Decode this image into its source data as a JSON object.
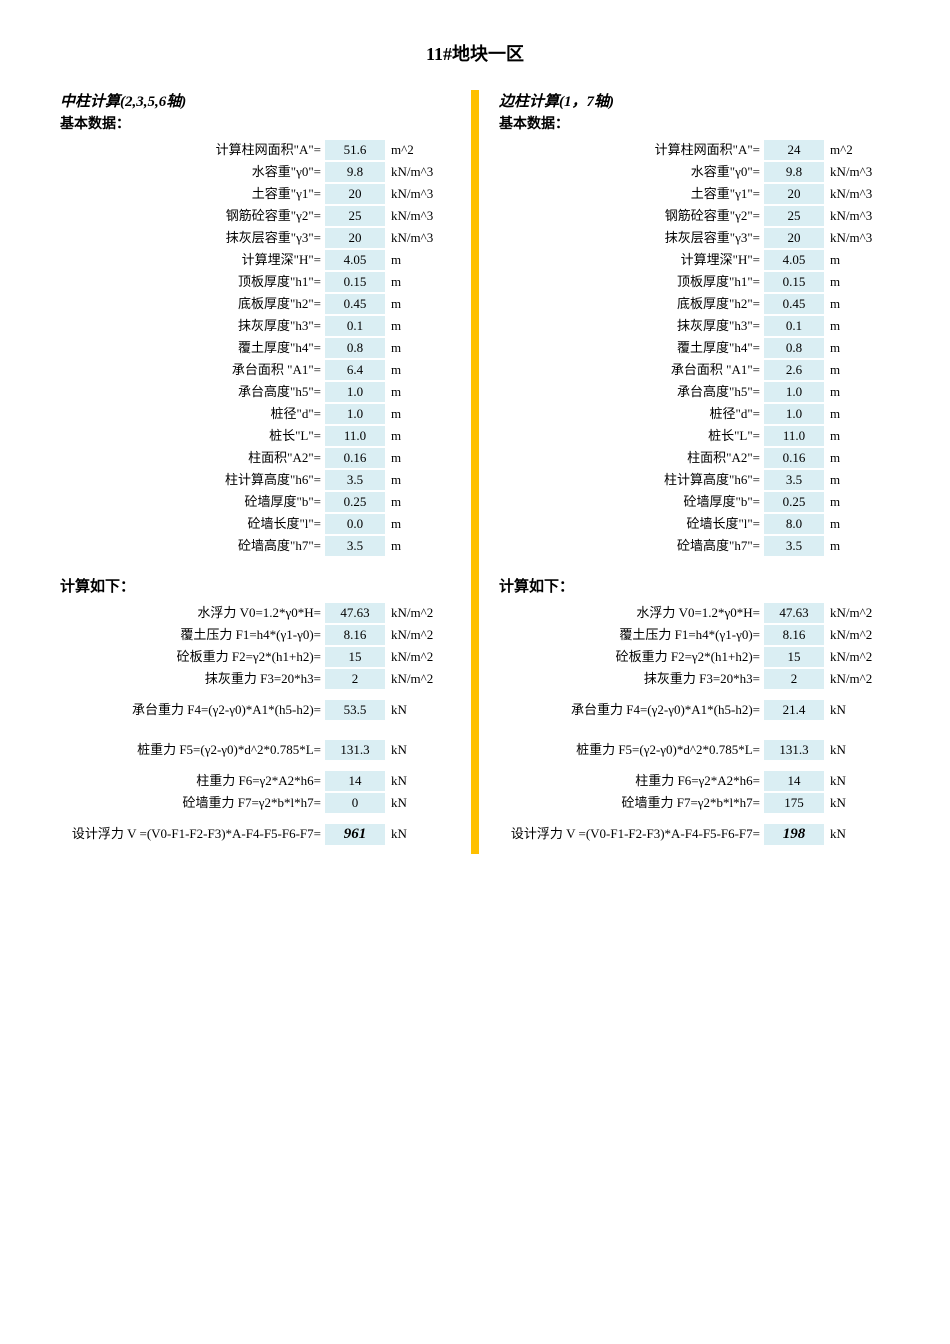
{
  "title": "11#地块一区",
  "columns": [
    {
      "header": "中柱计算(2,3,5,6轴)",
      "sub": "基本数据：",
      "basic": [
        {
          "label": "计算柱网面积\"A\"=",
          "val": "51.6",
          "unit": "m^2"
        },
        {
          "label": "水容重\"γ0\"=",
          "val": "9.8",
          "unit": "kN/m^3"
        },
        {
          "label": "土容重\"γ1\"=",
          "val": "20",
          "unit": "kN/m^3"
        },
        {
          "label": "钢筋砼容重\"γ2\"=",
          "val": "25",
          "unit": "kN/m^3"
        },
        {
          "label": "抹灰层容重\"γ3\"=",
          "val": "20",
          "unit": "kN/m^3"
        },
        {
          "label": "计算埋深\"H\"=",
          "val": "4.05",
          "unit": "m"
        },
        {
          "label": "顶板厚度\"h1\"=",
          "val": "0.15",
          "unit": "m"
        },
        {
          "label": "底板厚度\"h2\"=",
          "val": "0.45",
          "unit": "m"
        },
        {
          "label": "抹灰厚度\"h3\"=",
          "val": "0.1",
          "unit": "m"
        },
        {
          "label": "覆土厚度\"h4\"=",
          "val": "0.8",
          "unit": "m"
        },
        {
          "label": "承台面积 \"A1\"=",
          "val": "6.4",
          "unit": "m"
        },
        {
          "label": "承台高度\"h5\"=",
          "val": "1.0",
          "unit": "m"
        },
        {
          "label": "桩径\"d\"=",
          "val": "1.0",
          "unit": "m"
        },
        {
          "label": "桩长\"L\"=",
          "val": "11.0",
          "unit": "m"
        },
        {
          "label": "柱面积\"A2\"=",
          "val": "0.16",
          "unit": "m"
        },
        {
          "label": "柱计算高度\"h6\"=",
          "val": "3.5",
          "unit": "m"
        },
        {
          "label": "砼墙厚度\"b\"=",
          "val": "0.25",
          "unit": "m"
        },
        {
          "label": "砼墙长度\"l\"=",
          "val": "0.0",
          "unit": "m"
        },
        {
          "label": "砼墙高度\"h7\"=",
          "val": "3.5",
          "unit": "m"
        }
      ],
      "calcHeader": "计算如下：",
      "calc": [
        {
          "label": "水浮力 V0=1.2*γ0*H=",
          "val": "47.63",
          "unit": "kN/m^2",
          "tall": false
        },
        {
          "label": "覆土压力 F1=h4*(γ1-γ0)=",
          "val": "8.16",
          "unit": "kN/m^2",
          "tall": false
        },
        {
          "label": "砼板重力 F2=γ2*(h1+h2)=",
          "val": "15",
          "unit": "kN/m^2",
          "tall": false
        },
        {
          "label": "抹灰重力 F3=20*h3=",
          "val": "2",
          "unit": "kN/m^2",
          "tall": false
        },
        {
          "label": "承台重力 F4=(γ2-γ0)*A1*(h5-h2)=",
          "val": "53.5",
          "unit": "kN",
          "tall": true
        },
        {
          "label": "桩重力 F5=(γ2-γ0)*d^2*0.785*L=",
          "val": "131.3",
          "unit": "kN",
          "tall": true
        },
        {
          "label": "柱重力 F6=γ2*A2*h6=",
          "val": "14",
          "unit": "kN",
          "tall": false
        },
        {
          "label": "砼墙重力 F7=γ2*b*l*h7=",
          "val": "0",
          "unit": "kN",
          "tall": false
        },
        {
          "label": "设计浮力 V =(V0-F1-F2-F3)*A-F4-F5-F6-F7=",
          "val": "961",
          "unit": "kN",
          "tall": true,
          "final": true
        }
      ]
    },
    {
      "header": "边柱计算(1，7轴)",
      "sub": "基本数据：",
      "basic": [
        {
          "label": "计算柱网面积\"A\"=",
          "val": "24",
          "unit": "m^2"
        },
        {
          "label": "水容重\"γ0\"=",
          "val": "9.8",
          "unit": "kN/m^3"
        },
        {
          "label": "土容重\"γ1\"=",
          "val": "20",
          "unit": "kN/m^3"
        },
        {
          "label": "钢筋砼容重\"γ2\"=",
          "val": "25",
          "unit": "kN/m^3"
        },
        {
          "label": "抹灰层容重\"γ3\"=",
          "val": "20",
          "unit": "kN/m^3"
        },
        {
          "label": "计算埋深\"H\"=",
          "val": "4.05",
          "unit": "m"
        },
        {
          "label": "顶板厚度\"h1\"=",
          "val": "0.15",
          "unit": "m"
        },
        {
          "label": "底板厚度\"h2\"=",
          "val": "0.45",
          "unit": "m"
        },
        {
          "label": "抹灰厚度\"h3\"=",
          "val": "0.1",
          "unit": "m"
        },
        {
          "label": "覆土厚度\"h4\"=",
          "val": "0.8",
          "unit": "m"
        },
        {
          "label": "承台面积 \"A1\"=",
          "val": "2.6",
          "unit": "m"
        },
        {
          "label": "承台高度\"h5\"=",
          "val": "1.0",
          "unit": "m"
        },
        {
          "label": "桩径\"d\"=",
          "val": "1.0",
          "unit": "m"
        },
        {
          "label": "桩长\"L\"=",
          "val": "11.0",
          "unit": "m"
        },
        {
          "label": "柱面积\"A2\"=",
          "val": "0.16",
          "unit": "m"
        },
        {
          "label": "柱计算高度\"h6\"=",
          "val": "3.5",
          "unit": "m"
        },
        {
          "label": "砼墙厚度\"b\"=",
          "val": "0.25",
          "unit": "m"
        },
        {
          "label": "砼墙长度\"l\"=",
          "val": "8.0",
          "unit": "m"
        },
        {
          "label": "砼墙高度\"h7\"=",
          "val": "3.5",
          "unit": "m"
        }
      ],
      "calcHeader": "计算如下：",
      "calc": [
        {
          "label": "水浮力 V0=1.2*γ0*H=",
          "val": "47.63",
          "unit": "kN/m^2",
          "tall": false
        },
        {
          "label": "覆土压力 F1=h4*(γ1-γ0)=",
          "val": "8.16",
          "unit": "kN/m^2",
          "tall": false
        },
        {
          "label": "砼板重力 F2=γ2*(h1+h2)=",
          "val": "15",
          "unit": "kN/m^2",
          "tall": false
        },
        {
          "label": "抹灰重力 F3=20*h3=",
          "val": "2",
          "unit": "kN/m^2",
          "tall": false
        },
        {
          "label": "承台重力 F4=(γ2-γ0)*A1*(h5-h2)=",
          "val": "21.4",
          "unit": "kN",
          "tall": true
        },
        {
          "label": "桩重力 F5=(γ2-γ0)*d^2*0.785*L=",
          "val": "131.3",
          "unit": "kN",
          "tall": true
        },
        {
          "label": "柱重力 F6=γ2*A2*h6=",
          "val": "14",
          "unit": "kN",
          "tall": false
        },
        {
          "label": "砼墙重力 F7=γ2*b*l*h7=",
          "val": "175",
          "unit": "kN",
          "tall": false
        },
        {
          "label": "设计浮力 V =(V0-F1-F2-F3)*A-F4-F5-F6-F7=",
          "val": "198",
          "unit": "kN",
          "tall": true,
          "final": true
        }
      ]
    }
  ],
  "colors": {
    "highlight": "#daeef3",
    "divider": "#ffc000"
  }
}
